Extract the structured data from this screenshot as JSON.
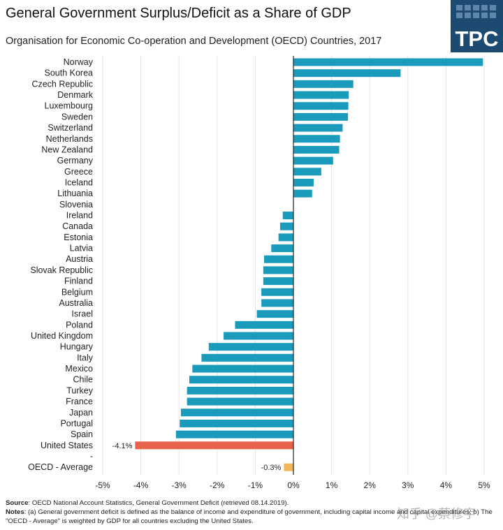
{
  "page": {
    "title": "General Government Surplus/Deficit as a Share of GDP",
    "subtitle": "Organisation for Economic Co-operation and Development (OECD) Countries, 2017",
    "logo_text": "TPC",
    "source_label": "Source",
    "source_text": ": OECD National Account Statistics, General Government Deficit (retrieved 08.14.2019).",
    "notes_label": "Notes",
    "notes_text": ": (a) General government deficit is defined as the balance of income and expenditure of government, including capital income and capital expenditures; b) The \"OECD - Average\" is weighted by GDP for all countries excluding the United States.",
    "watermark": "知乎 @蔡修宇"
  },
  "colors": {
    "bar_default": "#1b9bbb",
    "bar_highlight": "#e8614a",
    "bar_average": "#f3b65c",
    "grid": "#e3e3e3",
    "axis": "#222222",
    "logo_bg": "#1c4a70"
  },
  "chart_data": {
    "type": "bar",
    "orientation": "horizontal",
    "title": "General Government Surplus/Deficit as a Share of GDP",
    "subtitle": "Organisation for Economic Co-operation and Development (OECD) Countries, 2017",
    "xlim": [
      -5,
      5
    ],
    "xticks": [
      -5,
      -4,
      -3,
      -2,
      -1,
      0,
      1,
      2,
      3,
      4,
      5
    ],
    "xtick_labels": [
      "-5%",
      "-4%",
      "-3%",
      "-2%",
      "-1%",
      "0%",
      "1%",
      "2%",
      "3%",
      "4%",
      "5%"
    ],
    "grid": true,
    "categories": [
      "Norway",
      "South Korea",
      "Czech Republic",
      "Denmark",
      "Luxembourg",
      "Sweden",
      "Switzerland",
      "Netherlands",
      "New Zealand",
      "Germany",
      "Greece",
      "Iceland",
      "Lithuania",
      "Slovenia",
      "Ireland",
      "Canada",
      "Estonia",
      "Latvia",
      "Austria",
      "Slovak Republic",
      "Finland",
      "Belgium",
      "Australia",
      "Israel",
      "Poland",
      "United Kingdom",
      "Hungary",
      "Italy",
      "Mexico",
      "Chile",
      "Turkey",
      "France",
      "Japan",
      "Portugal",
      "Spain",
      "United States",
      "-",
      "OECD - Average"
    ],
    "values": [
      4.97,
      2.81,
      1.57,
      1.45,
      1.44,
      1.43,
      1.29,
      1.22,
      1.2,
      1.04,
      0.73,
      0.53,
      0.49,
      0.0,
      -0.28,
      -0.35,
      -0.39,
      -0.58,
      -0.77,
      -0.79,
      -0.79,
      -0.84,
      -0.84,
      -0.96,
      -1.53,
      -1.83,
      -2.22,
      -2.41,
      -2.65,
      -2.73,
      -2.79,
      -2.79,
      -2.95,
      -2.98,
      -3.08,
      -4.15,
      null,
      -0.25
    ],
    "highlight": {
      "United States": "highlight",
      "OECD - Average": "average"
    },
    "data_labels": {
      "United States": "-4.1%",
      "OECD - Average": "-0.3%"
    }
  }
}
